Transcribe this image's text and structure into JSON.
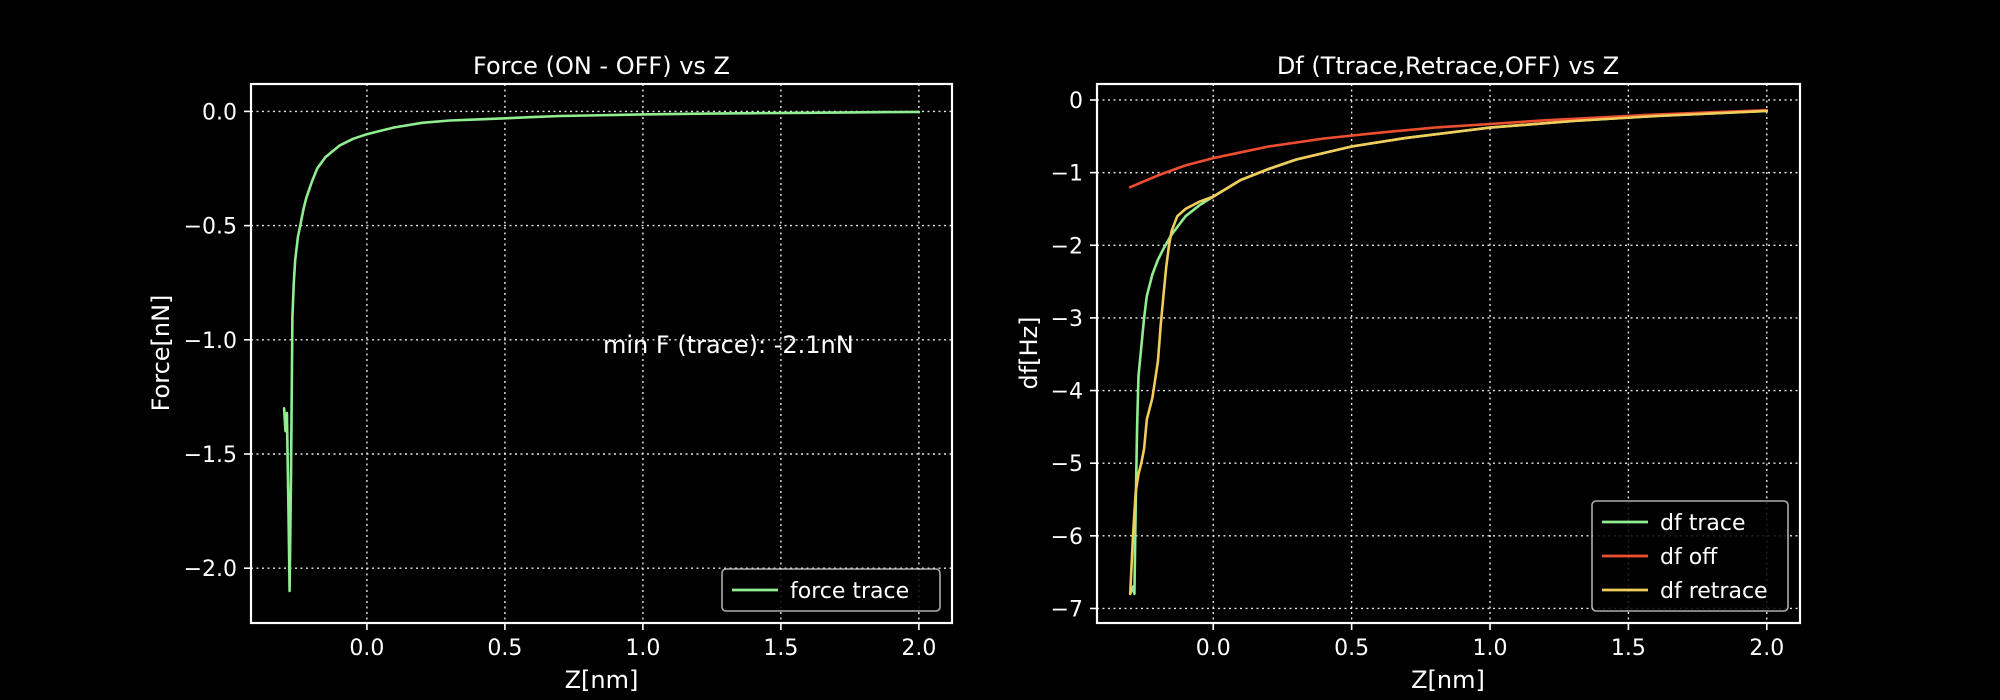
{
  "chart_data": [
    {
      "type": "line",
      "title": "Force (ON - OFF) vs Z",
      "xlabel": "Z[nm]",
      "ylabel": "Force[nN]",
      "xlim": [
        -0.42,
        2.12
      ],
      "ylim": [
        -2.24,
        0.12
      ],
      "xticks": [
        0.0,
        0.5,
        1.0,
        1.5,
        2.0
      ],
      "xtick_labels": [
        "0.0",
        "0.5",
        "1.0",
        "1.5",
        "2.0"
      ],
      "yticks": [
        0.0,
        -0.5,
        -1.0,
        -1.5,
        -2.0
      ],
      "ytick_labels": [
        "0.0",
        "−0.5",
        "−1.0",
        "−1.5",
        "−2.0"
      ],
      "grid": true,
      "legend_position": "lower-right",
      "annotation": {
        "text": "min F (trace): -2.1nN",
        "x": 0.84,
        "y": -1.01
      },
      "series": [
        {
          "name": "force trace",
          "color": "#90ee90",
          "x": [
            -0.3,
            -0.295,
            -0.29,
            -0.285,
            -0.28,
            -0.275,
            -0.27,
            -0.265,
            -0.26,
            -0.25,
            -0.24,
            -0.23,
            -0.22,
            -0.2,
            -0.18,
            -0.15,
            -0.12,
            -0.1,
            -0.05,
            0.0,
            0.05,
            0.1,
            0.15,
            0.2,
            0.3,
            0.4,
            0.5,
            0.6,
            0.7,
            0.8,
            1.0,
            1.2,
            1.4,
            1.6,
            1.8,
            2.0
          ],
          "y": [
            -1.3,
            -1.4,
            -1.32,
            -1.7,
            -2.1,
            -1.6,
            -0.9,
            -0.75,
            -0.65,
            -0.55,
            -0.49,
            -0.43,
            -0.38,
            -0.31,
            -0.25,
            -0.2,
            -0.17,
            -0.15,
            -0.12,
            -0.1,
            -0.085,
            -0.07,
            -0.06,
            -0.05,
            -0.04,
            -0.035,
            -0.03,
            -0.025,
            -0.02,
            -0.018,
            -0.013,
            -0.01,
            -0.008,
            -0.006,
            -0.004,
            -0.002
          ]
        }
      ]
    },
    {
      "type": "line",
      "title": "Df (Ttrace,Retrace,OFF) vs Z",
      "xlabel": "Z[nm]",
      "ylabel": "df[Hz]",
      "xlim": [
        -0.42,
        2.12
      ],
      "ylim": [
        -7.2,
        0.22
      ],
      "xticks": [
        0.0,
        0.5,
        1.0,
        1.5,
        2.0
      ],
      "xtick_labels": [
        "0.0",
        "0.5",
        "1.0",
        "1.5",
        "2.0"
      ],
      "yticks": [
        0,
        -1,
        -2,
        -3,
        -4,
        -5,
        -6,
        -7
      ],
      "ytick_labels": [
        "0",
        "−1",
        "−2",
        "−3",
        "−4",
        "−5",
        "−6",
        "−7"
      ],
      "grid": true,
      "legend_position": "lower-right",
      "series": [
        {
          "name": "df trace",
          "color": "#90ee90",
          "x": [
            -0.3,
            -0.29,
            -0.285,
            -0.28,
            -0.275,
            -0.27,
            -0.26,
            -0.25,
            -0.24,
            -0.22,
            -0.2,
            -0.18,
            -0.15,
            -0.12,
            -0.1,
            -0.05,
            0.0,
            0.1,
            0.2,
            0.3,
            0.5,
            0.7,
            1.0,
            1.3,
            1.6,
            2.0
          ],
          "y": [
            -6.8,
            -6.7,
            -6.8,
            -5.6,
            -4.5,
            -3.8,
            -3.4,
            -3.0,
            -2.7,
            -2.4,
            -2.2,
            -2.05,
            -1.85,
            -1.7,
            -1.6,
            -1.45,
            -1.33,
            -1.1,
            -0.95,
            -0.82,
            -0.64,
            -0.52,
            -0.38,
            -0.29,
            -0.22,
            -0.15
          ]
        },
        {
          "name": "df off",
          "color": "#ee4e30",
          "x": [
            -0.3,
            -0.25,
            -0.2,
            -0.15,
            -0.1,
            0.0,
            0.1,
            0.2,
            0.4,
            0.6,
            0.8,
            1.0,
            1.2,
            1.4,
            1.6,
            1.8,
            2.0
          ],
          "y": [
            -1.2,
            -1.12,
            -1.04,
            -0.97,
            -0.9,
            -0.8,
            -0.72,
            -0.64,
            -0.53,
            -0.45,
            -0.38,
            -0.33,
            -0.28,
            -0.24,
            -0.2,
            -0.17,
            -0.14
          ]
        },
        {
          "name": "df retrace",
          "color": "#f2cc5a",
          "x": [
            -0.3,
            -0.29,
            -0.28,
            -0.27,
            -0.26,
            -0.25,
            -0.24,
            -0.22,
            -0.2,
            -0.19,
            -0.18,
            -0.17,
            -0.16,
            -0.15,
            -0.13,
            -0.1,
            -0.05,
            0.0,
            0.1,
            0.2,
            0.3,
            0.5,
            0.7,
            1.0,
            1.3,
            1.6,
            2.0
          ],
          "y": [
            -6.8,
            -6.0,
            -5.4,
            -5.15,
            -5.0,
            -4.8,
            -4.4,
            -4.1,
            -3.6,
            -3.1,
            -2.7,
            -2.3,
            -2.0,
            -1.8,
            -1.6,
            -1.5,
            -1.4,
            -1.33,
            -1.1,
            -0.95,
            -0.82,
            -0.64,
            -0.52,
            -0.38,
            -0.29,
            -0.22,
            -0.15
          ]
        }
      ]
    }
  ]
}
